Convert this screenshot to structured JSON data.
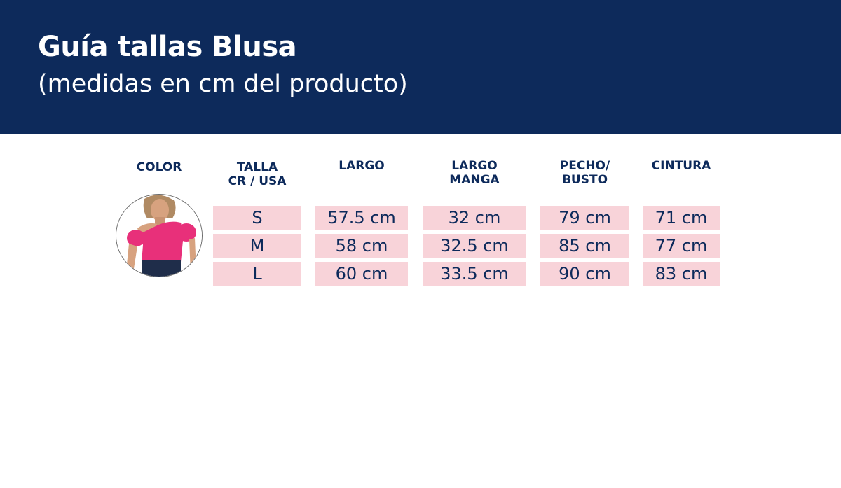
{
  "header": {
    "title": "Guía tallas Blusa",
    "subtitle": "(medidas en cm del producto)"
  },
  "table": {
    "columns": [
      "COLOR",
      "TALLA\nCR / USA",
      "LARGO",
      "LARGO\nMANGA",
      "PECHO/\nBUSTO",
      "CINTURA"
    ],
    "rows": [
      {
        "talla": "S",
        "largo": "57.5 cm",
        "largo_manga": "32 cm",
        "pecho": "79 cm",
        "cintura": "71 cm"
      },
      {
        "talla": "M",
        "largo": "58 cm",
        "largo_manga": "32.5 cm",
        "pecho": "85 cm",
        "cintura": "77 cm"
      },
      {
        "talla": "L",
        "largo": "60 cm",
        "largo_manga": "33.5 cm",
        "pecho": "90 cm",
        "cintura": "83 cm"
      }
    ]
  },
  "colors": {
    "header_bg": "#0d2a5b",
    "cell_bg": "#f8d3d9",
    "text": "#0d2a5b",
    "blouse": "#e8307a"
  }
}
